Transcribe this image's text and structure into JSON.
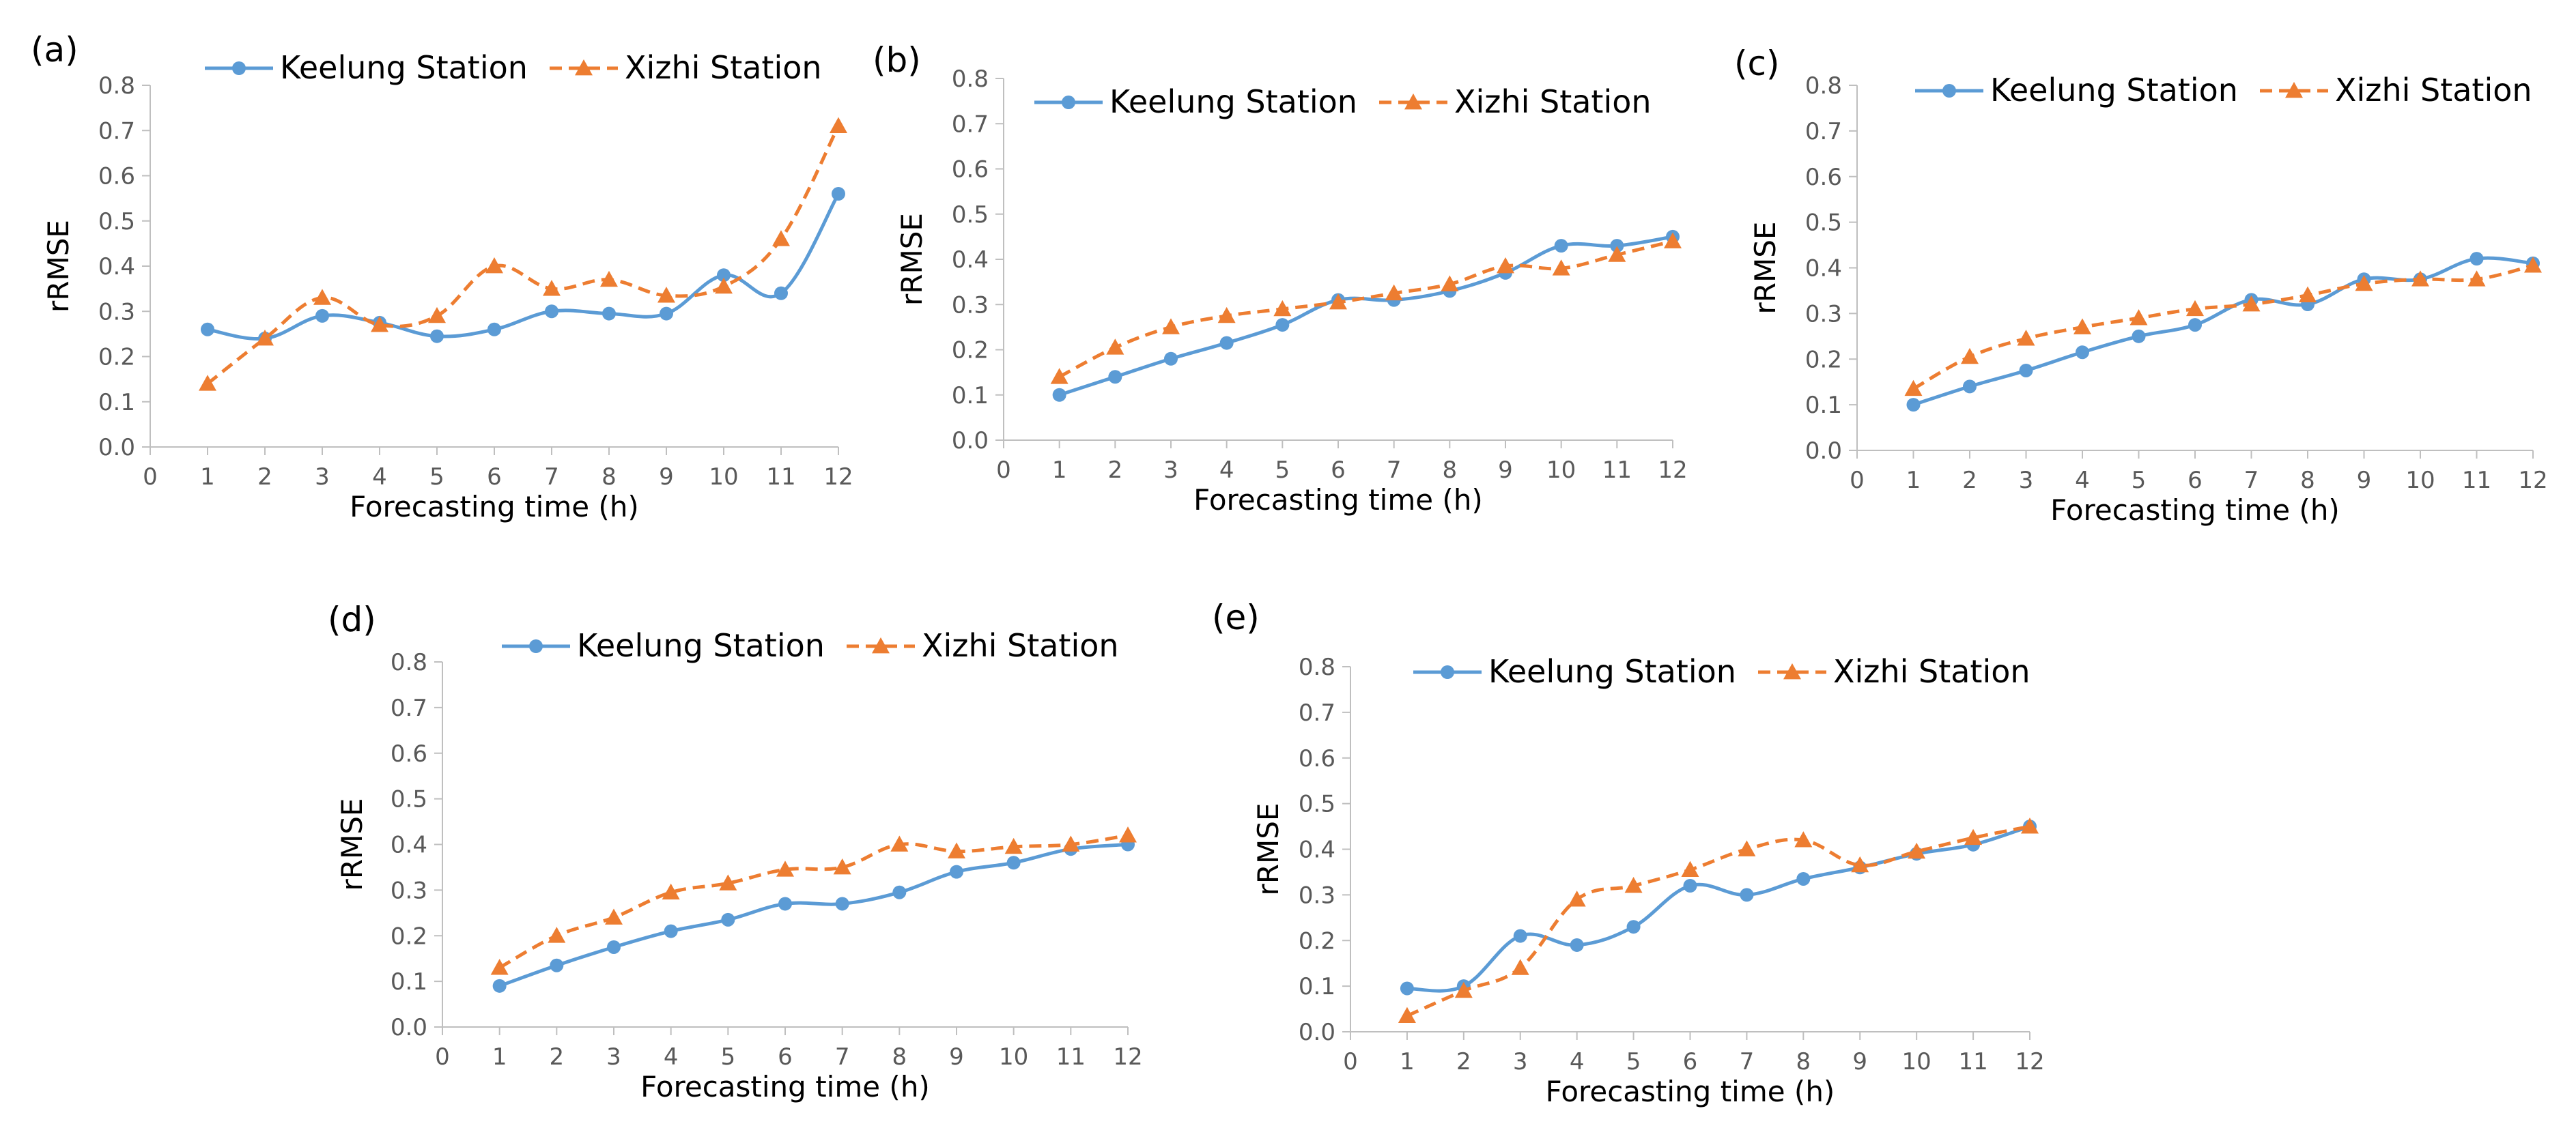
{
  "colors": {
    "keelung": "#5b9bd5",
    "xizhi": "#ed7d31",
    "axis": "#bfbfbf",
    "text": "#595959"
  },
  "chart_data": [
    {
      "panel": "(a)",
      "type": "line",
      "x": [
        1,
        2,
        3,
        4,
        5,
        6,
        7,
        8,
        9,
        10,
        11,
        12
      ],
      "xticks": [
        0,
        1,
        2,
        3,
        4,
        5,
        6,
        7,
        8,
        9,
        10,
        11,
        12
      ],
      "xlim": [
        0,
        12
      ],
      "ylim": [
        0,
        0.8
      ],
      "yticks": [
        "0.0",
        "0.1",
        "0.2",
        "0.3",
        "0.4",
        "0.5",
        "0.6",
        "0.7",
        "0.8"
      ],
      "xlabel": "Forecasting time (h)",
      "ylabel": "rRMSE",
      "series": [
        {
          "name": "Keelung Station",
          "marker": "circle",
          "line": "solid",
          "values": [
            0.26,
            0.24,
            0.29,
            0.275,
            0.245,
            0.26,
            0.3,
            0.295,
            0.295,
            0.38,
            0.34,
            0.56
          ]
        },
        {
          "name": "Xizhi Station",
          "marker": "triangle",
          "line": "dashed",
          "values": [
            0.14,
            0.24,
            0.33,
            0.27,
            0.29,
            0.4,
            0.35,
            0.37,
            0.335,
            0.355,
            0.46,
            0.71
          ]
        }
      ]
    },
    {
      "panel": "(b)",
      "type": "line",
      "x": [
        1,
        2,
        3,
        4,
        5,
        6,
        7,
        8,
        9,
        10,
        11,
        12
      ],
      "xticks": [
        0,
        1,
        2,
        3,
        4,
        5,
        6,
        7,
        8,
        9,
        10,
        11,
        12
      ],
      "xlim": [
        0,
        12
      ],
      "ylim": [
        0,
        0.8
      ],
      "yticks": [
        "0.0",
        "0.1",
        "0.2",
        "0.3",
        "0.4",
        "0.5",
        "0.6",
        "0.7",
        "0.8"
      ],
      "xlabel": "Forecasting time (h)",
      "ylabel": "rRMSE",
      "series": [
        {
          "name": "Keelung Station",
          "marker": "circle",
          "line": "solid",
          "values": [
            0.1,
            0.14,
            0.18,
            0.215,
            0.255,
            0.31,
            0.31,
            0.33,
            0.37,
            0.43,
            0.43,
            0.45
          ]
        },
        {
          "name": "Xizhi Station",
          "marker": "triangle",
          "line": "dashed",
          "values": [
            0.14,
            0.205,
            0.25,
            0.275,
            0.29,
            0.305,
            0.325,
            0.345,
            0.385,
            0.38,
            0.41,
            0.44
          ]
        }
      ]
    },
    {
      "panel": "(c)",
      "type": "line",
      "x": [
        1,
        2,
        3,
        4,
        5,
        6,
        7,
        8,
        9,
        10,
        11,
        12
      ],
      "xticks": [
        0,
        1,
        2,
        3,
        4,
        5,
        6,
        7,
        8,
        9,
        10,
        11,
        12
      ],
      "xlim": [
        0,
        12
      ],
      "ylim": [
        0,
        0.8
      ],
      "yticks": [
        "0.0",
        "0.1",
        "0.2",
        "0.3",
        "0.4",
        "0.5",
        "0.6",
        "0.7",
        "0.8"
      ],
      "xlabel": "Forecasting time (h)",
      "ylabel": "rRMSE",
      "series": [
        {
          "name": "Keelung Station",
          "marker": "circle",
          "line": "solid",
          "values": [
            0.1,
            0.14,
            0.175,
            0.215,
            0.25,
            0.275,
            0.33,
            0.32,
            0.375,
            0.375,
            0.42,
            0.41
          ]
        },
        {
          "name": "Xizhi Station",
          "marker": "triangle",
          "line": "dashed",
          "values": [
            0.135,
            0.205,
            0.245,
            0.27,
            0.29,
            0.31,
            0.32,
            0.34,
            0.365,
            0.375,
            0.375,
            0.405
          ]
        }
      ]
    },
    {
      "panel": "(d)",
      "type": "line",
      "x": [
        1,
        2,
        3,
        4,
        5,
        6,
        7,
        8,
        9,
        10,
        11,
        12
      ],
      "xticks": [
        0,
        1,
        2,
        3,
        4,
        5,
        6,
        7,
        8,
        9,
        10,
        11,
        12
      ],
      "xlim": [
        0,
        12
      ],
      "ylim": [
        0,
        0.8
      ],
      "yticks": [
        "0.0",
        "0.1",
        "0.2",
        "0.3",
        "0.4",
        "0.5",
        "0.6",
        "0.7",
        "0.8"
      ],
      "xlabel": "Forecasting time (h)",
      "ylabel": "rRMSE",
      "series": [
        {
          "name": "Keelung Station",
          "marker": "circle",
          "line": "solid",
          "values": [
            0.09,
            0.135,
            0.175,
            0.21,
            0.235,
            0.27,
            0.27,
            0.295,
            0.34,
            0.36,
            0.39,
            0.4
          ]
        },
        {
          "name": "Xizhi Station",
          "marker": "triangle",
          "line": "dashed",
          "values": [
            0.13,
            0.2,
            0.24,
            0.295,
            0.315,
            0.345,
            0.35,
            0.4,
            0.385,
            0.395,
            0.4,
            0.42
          ]
        }
      ]
    },
    {
      "panel": "(e)",
      "type": "line",
      "x": [
        1,
        2,
        3,
        4,
        5,
        6,
        7,
        8,
        9,
        10,
        11,
        12
      ],
      "xticks": [
        0,
        1,
        2,
        3,
        4,
        5,
        6,
        7,
        8,
        9,
        10,
        11,
        12
      ],
      "xlim": [
        0,
        12
      ],
      "ylim": [
        0,
        0.8
      ],
      "yticks": [
        "0.0",
        "0.1",
        "0.2",
        "0.3",
        "0.4",
        "0.5",
        "0.6",
        "0.7",
        "0.8"
      ],
      "xlabel": "Forecasting time (h)",
      "ylabel": "rRMSE",
      "series": [
        {
          "name": "Keelung Station",
          "marker": "circle",
          "line": "solid",
          "values": [
            0.095,
            0.1,
            0.21,
            0.19,
            0.23,
            0.32,
            0.3,
            0.335,
            0.36,
            0.39,
            0.41,
            0.45
          ]
        },
        {
          "name": "Xizhi Station",
          "marker": "triangle",
          "line": "dashed",
          "values": [
            0.035,
            0.09,
            0.14,
            0.29,
            0.32,
            0.355,
            0.4,
            0.42,
            0.365,
            0.395,
            0.425,
            0.45
          ]
        }
      ]
    }
  ]
}
